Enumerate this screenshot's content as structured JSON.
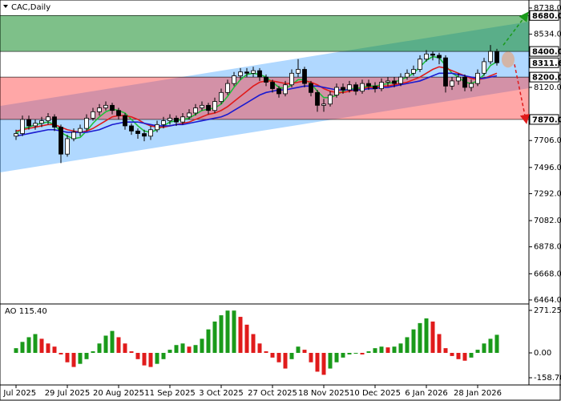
{
  "chart_data": [
    {
      "type": "candlestick",
      "title": "CAC,Daily",
      "xlim": [
        -2.5,
        80
      ],
      "ylim": [
        6464,
        8738
      ],
      "yticks": [
        {
          "value": 8738,
          "label": "8738.0"
        },
        {
          "value": 8534,
          "label": "8534.0"
        },
        {
          "value": 8120,
          "label": "8120.0"
        },
        {
          "value": 7706,
          "label": "7706.0"
        },
        {
          "value": 7496,
          "label": "7496.0"
        },
        {
          "value": 7292,
          "label": "7292.0"
        },
        {
          "value": 7082,
          "label": "7082.0"
        },
        {
          "value": 6878,
          "label": "6878.0"
        },
        {
          "value": 6668,
          "label": "6668.0"
        },
        {
          "value": 6464,
          "label": "6464.0"
        }
      ],
      "open": [
        7740,
        7760,
        7870,
        7820,
        7840,
        7860,
        7890,
        7810,
        7600,
        7720,
        7770,
        7800,
        7880,
        7930,
        7960,
        7980,
        7940,
        7900,
        7820,
        7780,
        7760,
        7740,
        7790,
        7830,
        7860,
        7880,
        7850,
        7890,
        7920,
        7960,
        7980,
        7940,
        8010,
        8080,
        8150,
        8210,
        8240,
        8230,
        8250,
        8200,
        8160,
        8110,
        8070,
        8140,
        8230,
        8260,
        8150,
        8080,
        7980,
        7990,
        8060,
        8120,
        8100,
        8140,
        8090,
        8150,
        8130,
        8110,
        8160,
        8170,
        8150,
        8200,
        8230,
        8260,
        8340,
        8380,
        8370,
        8350,
        8130,
        8170,
        8200,
        8120,
        8150,
        8230,
        8320,
        8400
      ],
      "high": [
        7790,
        7900,
        7900,
        7870,
        7890,
        7920,
        7910,
        7830,
        7750,
        7800,
        7830,
        7910,
        7960,
        7990,
        8010,
        8000,
        7960,
        7920,
        7840,
        7800,
        7790,
        7820,
        7860,
        7890,
        7910,
        7900,
        7920,
        7950,
        7990,
        8010,
        8000,
        8040,
        8110,
        8180,
        8240,
        8270,
        8270,
        8280,
        8270,
        8220,
        8180,
        8130,
        8170,
        8260,
        8340,
        8280,
        8170,
        8100,
        8030,
        8090,
        8150,
        8150,
        8170,
        8160,
        8180,
        8180,
        8160,
        8190,
        8200,
        8200,
        8230,
        8260,
        8290,
        8370,
        8410,
        8400,
        8390,
        8370,
        8200,
        8230,
        8220,
        8180,
        8260,
        8350,
        8450,
        8420
      ],
      "low": [
        7710,
        7740,
        7790,
        7790,
        7810,
        7830,
        7780,
        7530,
        7580,
        7700,
        7740,
        7780,
        7860,
        7900,
        7940,
        7910,
        7870,
        7790,
        7750,
        7720,
        7700,
        7710,
        7770,
        7800,
        7830,
        7820,
        7830,
        7870,
        7900,
        7940,
        7910,
        7920,
        7990,
        8060,
        8130,
        8180,
        8200,
        8200,
        8170,
        8130,
        8080,
        8040,
        8050,
        8120,
        8200,
        8120,
        8050,
        7930,
        7930,
        7970,
        8040,
        8070,
        8080,
        8060,
        8070,
        8100,
        8080,
        8090,
        8130,
        8120,
        8130,
        8180,
        8210,
        8240,
        8320,
        8330,
        8300,
        8080,
        8100,
        8140,
        8090,
        8090,
        8130,
        8210,
        8300,
        8290
      ],
      "close": [
        7760,
        7870,
        7820,
        7840,
        7860,
        7890,
        7810,
        7600,
        7720,
        7770,
        7800,
        7880,
        7930,
        7960,
        7980,
        7940,
        7900,
        7820,
        7780,
        7760,
        7740,
        7790,
        7830,
        7860,
        7880,
        7850,
        7890,
        7920,
        7960,
        7980,
        7940,
        8010,
        8080,
        8150,
        8210,
        8240,
        8230,
        8250,
        8200,
        8160,
        8110,
        8070,
        8140,
        8230,
        8260,
        8150,
        8080,
        7980,
        7990,
        8060,
        8120,
        8100,
        8140,
        8090,
        8150,
        8130,
        8110,
        8160,
        8170,
        8150,
        8200,
        8230,
        8260,
        8340,
        8380,
        8370,
        8350,
        8130,
        8170,
        8200,
        8120,
        8150,
        8230,
        8320,
        8400,
        8311.6
      ],
      "last_label": "8311.6",
      "series": [
        {
          "color": "#1fbf3a",
          "values": [
            7760,
            7800,
            7810,
            7830,
            7840,
            7850,
            7830,
            7770,
            7740,
            7720,
            7730,
            7780,
            7840,
            7890,
            7930,
            7950,
            7940,
            7920,
            7870,
            7820,
            7780,
            7770,
            7790,
            7820,
            7850,
            7860,
            7870,
            7880,
            7910,
            7940,
            7950,
            7960,
            7990,
            8050,
            8120,
            8180,
            8220,
            8230,
            8220,
            8200,
            8160,
            8120,
            8110,
            8140,
            8180,
            8180,
            8150,
            8090,
            8040,
            8040,
            8060,
            8090,
            8110,
            8110,
            8120,
            8130,
            8130,
            8140,
            8150,
            8160,
            8180,
            8200,
            8230,
            8280,
            8330,
            8360,
            8350,
            8290,
            8230,
            8200,
            8160,
            8150,
            8170,
            8220,
            8290,
            8320
          ]
        },
        {
          "color": "#e01b1b",
          "values": [
            7780,
            7790,
            7800,
            7810,
            7820,
            7830,
            7830,
            7810,
            7790,
            7780,
            7770,
            7780,
            7800,
            7830,
            7860,
            7890,
            7900,
            7900,
            7890,
            7870,
            7840,
            7820,
            7810,
            7810,
            7820,
            7830,
            7840,
            7850,
            7870,
            7890,
            7910,
            7920,
            7940,
            7970,
            8010,
            8050,
            8090,
            8130,
            8160,
            8170,
            8170,
            8160,
            8150,
            8150,
            8160,
            8170,
            8160,
            8140,
            8110,
            8090,
            8080,
            8080,
            8090,
            8100,
            8110,
            8120,
            8120,
            8130,
            8130,
            8140,
            8150,
            8160,
            8180,
            8200,
            8230,
            8260,
            8280,
            8270,
            8250,
            8230,
            8210,
            8190,
            8180,
            8190,
            8210,
            8230
          ]
        },
        {
          "color": "#1a1ad0",
          "values": [
            7740,
            7750,
            7760,
            7770,
            7780,
            7790,
            7790,
            7780,
            7770,
            7770,
            7770,
            7770,
            7780,
            7790,
            7810,
            7830,
            7840,
            7850,
            7850,
            7850,
            7840,
            7830,
            7820,
            7820,
            7820,
            7830,
            7830,
            7840,
            7850,
            7860,
            7870,
            7880,
            7890,
            7910,
            7940,
            7970,
            8000,
            8030,
            8060,
            8080,
            8090,
            8100,
            8100,
            8110,
            8120,
            8130,
            8130,
            8130,
            8120,
            8110,
            8100,
            8100,
            8100,
            8100,
            8100,
            8110,
            8110,
            8120,
            8120,
            8130,
            8140,
            8150,
            8160,
            8170,
            8190,
            8210,
            8230,
            8230,
            8230,
            8220,
            8210,
            8200,
            8190,
            8190,
            8200,
            8210
          ]
        }
      ],
      "channel": {
        "upper": [
          7975,
          8632
        ],
        "lower": [
          7457,
          8113
        ],
        "color": "rgba(30,144,255,0.35)"
      },
      "zones": [
        {
          "top": {
            "value": 8680,
            "label": "8680.0"
          },
          "bottom": {
            "value": 8400,
            "label": "8400.0"
          },
          "color": "rgba(20,140,40,0.55)"
        },
        {
          "top": {
            "value": 8200,
            "label": "8200.0"
          },
          "bottom": {
            "value": 7870,
            "label": "7870.0"
          },
          "color": "rgba(255,60,60,0.45)"
        }
      ]
    },
    {
      "type": "bar",
      "title": "AO 115.40",
      "xlim": [
        -2.5,
        80
      ],
      "ylim": [
        -158.7,
        271.25
      ],
      "yticks": [
        {
          "value": 271.25,
          "label": "271.25"
        },
        {
          "value": 0,
          "label": "0.00"
        },
        {
          "value": -158.7,
          "label": "-158.70"
        }
      ],
      "xticks": [
        {
          "value": 0,
          "label": "7 Jul 2025"
        },
        {
          "value": 8,
          "label": "29 Jul 2025"
        },
        {
          "value": 16,
          "label": "20 Aug 2025"
        },
        {
          "value": 24,
          "label": "11 Sep 2025"
        },
        {
          "value": 32,
          "label": "3 Oct 2025"
        },
        {
          "value": 40,
          "label": "27 Oct 2025"
        },
        {
          "value": 48,
          "label": "18 Nov 2025"
        },
        {
          "value": 56,
          "label": "10 Dec 2025"
        },
        {
          "value": 64,
          "label": "6 Jan 2026"
        },
        {
          "value": 72,
          "label": "28 Jan 2026"
        }
      ],
      "up_color": "#1a9a1a",
      "down_color": "#e01b1b",
      "values": [
        30,
        70,
        100,
        120,
        90,
        60,
        40,
        -10,
        -60,
        -90,
        -70,
        -40,
        10,
        60,
        110,
        140,
        100,
        60,
        10,
        -40,
        -80,
        -90,
        -70,
        -40,
        20,
        50,
        60,
        40,
        50,
        90,
        150,
        200,
        240,
        270,
        270,
        230,
        180,
        120,
        60,
        10,
        -30,
        -60,
        -100,
        -40,
        40,
        20,
        -60,
        -120,
        -140,
        -100,
        -60,
        -30,
        -10,
        -5,
        -10,
        10,
        30,
        40,
        35,
        40,
        60,
        100,
        150,
        190,
        220,
        200,
        120,
        30,
        -20,
        -40,
        -50,
        -30,
        20,
        60,
        90,
        115.4
      ]
    }
  ]
}
